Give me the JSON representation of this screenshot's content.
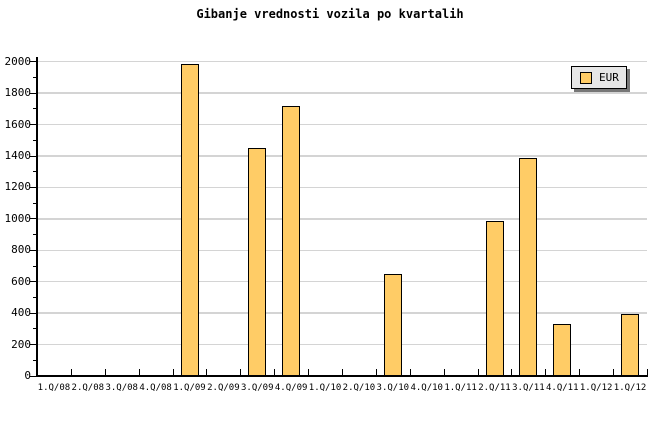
{
  "chart_data": {
    "type": "bar",
    "title": "Gibanje vrednosti vozila po kvartalih",
    "categories": [
      "1.Q/08",
      "2.Q/08",
      "3.Q/08",
      "4.Q/08",
      "1.Q/09",
      "2.Q/09",
      "3.Q/09",
      "4.Q/09",
      "1.Q/10",
      "2.Q/10",
      "3.Q/10",
      "4.Q/10",
      "1.Q/11",
      "2.Q/11",
      "3.Q/11",
      "4.Q/11",
      "1.Q/12",
      "1.Q/12"
    ],
    "series": [
      {
        "name": "EUR",
        "values": [
          null,
          null,
          null,
          null,
          1985,
          null,
          1450,
          1720,
          null,
          null,
          650,
          null,
          null,
          985,
          1390,
          330,
          null,
          395
        ]
      }
    ],
    "xlabel": "",
    "ylabel": "",
    "ylim": [
      0,
      2000
    ],
    "y_ticks": [
      0,
      200,
      400,
      600,
      800,
      1000,
      1200,
      1400,
      1600,
      1800,
      2000
    ],
    "y_minor_step": 100,
    "grid": "horizontal-major",
    "legend_position": "top-right",
    "colors": {
      "background": "#FFFFFF",
      "bar_fill": "#FFCC66",
      "bar_border": "#000000",
      "grid": "#D4D4D4",
      "axis": "#000000",
      "legend_bg": "#E6E6E6",
      "legend_shadow": "#777777"
    }
  }
}
